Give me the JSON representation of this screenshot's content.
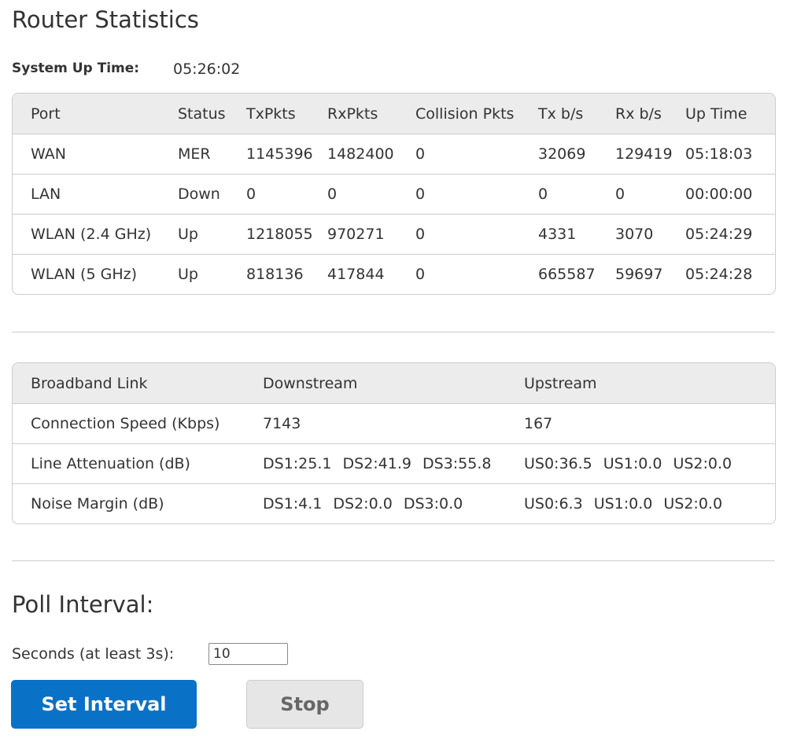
{
  "title": "Router Statistics",
  "uptime": {
    "label": "System Up Time:",
    "value": "05:26:02"
  },
  "ports": {
    "headers": [
      "Port",
      "Status",
      "TxPkts",
      "RxPkts",
      "Collision Pkts",
      "Tx b/s",
      "Rx b/s",
      "Up Time"
    ],
    "rows": [
      [
        "WAN",
        "MER",
        "1145396",
        "1482400",
        "0",
        "32069",
        "129419",
        "05:18:03"
      ],
      [
        "LAN",
        "Down",
        "0",
        "0",
        "0",
        "0",
        "0",
        "00:00:00"
      ],
      [
        "WLAN (2.4 GHz)",
        "Up",
        "1218055",
        "970271",
        "0",
        "4331",
        "3070",
        "05:24:29"
      ],
      [
        "WLAN (5 GHz)",
        "Up",
        "818136",
        "417844",
        "0",
        "665587",
        "59697",
        "05:24:28"
      ]
    ]
  },
  "broadband": {
    "headers": [
      "Broadband Link",
      "Downstream",
      "Upstream"
    ],
    "rows": [
      {
        "label": "Connection Speed (Kbps)",
        "down": [
          "7143"
        ],
        "up": [
          "167"
        ]
      },
      {
        "label": "Line Attenuation (dB)",
        "down": [
          "DS1:25.1",
          "DS2:41.9",
          "DS3:55.8"
        ],
        "up": [
          "US0:36.5",
          "US1:0.0",
          "US2:0.0"
        ]
      },
      {
        "label": "Noise Margin (dB)",
        "down": [
          "DS1:4.1",
          "DS2:0.0",
          "DS3:0.0"
        ],
        "up": [
          "US0:6.3",
          "US1:0.0",
          "US2:0.0"
        ]
      }
    ]
  },
  "poll": {
    "title": "Poll Interval:",
    "label": "Seconds (at least 3s):",
    "value": "10",
    "set_label": "Set Interval",
    "stop_label": "Stop"
  },
  "colors": {
    "primary": "#0a72c6"
  }
}
